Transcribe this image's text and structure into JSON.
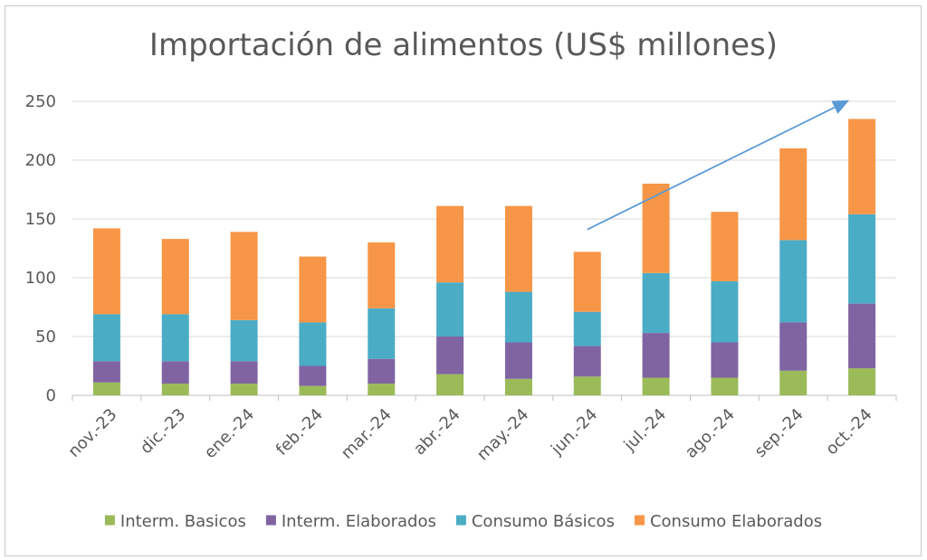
{
  "chart_data": {
    "type": "bar",
    "stacked": true,
    "title": "Importación de alimentos (US$ millones)",
    "xlabel": "",
    "ylabel": "",
    "ylim": [
      0,
      250
    ],
    "yticks": [
      0,
      50,
      100,
      150,
      200,
      250
    ],
    "grid": true,
    "legend_position": "bottom",
    "categories": [
      "nov.-23",
      "dic.-23",
      "ene.-24",
      "feb.-24",
      "mar.-24",
      "abr.-24",
      "may.-24",
      "jun.-24",
      "jul.-24",
      "ago.-24",
      "sep.-24",
      "oct.-24"
    ],
    "series": [
      {
        "name": "Interm. Basicos",
        "color": "#9bbb59",
        "values": [
          11,
          10,
          10,
          8,
          10,
          18,
          14,
          16,
          15,
          15,
          21,
          23
        ]
      },
      {
        "name": "Interm. Elaborados",
        "color": "#8064a2",
        "values": [
          18,
          19,
          19,
          17,
          21,
          32,
          31,
          26,
          38,
          30,
          41,
          55
        ]
      },
      {
        "name": "Consumo Básicos",
        "color": "#4bacc6",
        "values": [
          40,
          40,
          35,
          37,
          43,
          46,
          43,
          29,
          51,
          52,
          70,
          76
        ]
      },
      {
        "name": "Consumo Elaborados",
        "color": "#f79646",
        "values": [
          73,
          64,
          75,
          56,
          56,
          65,
          73,
          51,
          76,
          59,
          78,
          81
        ]
      }
    ],
    "trend_arrow": {
      "from": {
        "category": "jun.-24",
        "value": 141
      },
      "to": {
        "category": "oct.-24",
        "value": 251
      },
      "color": "#5b9bd5"
    }
  }
}
